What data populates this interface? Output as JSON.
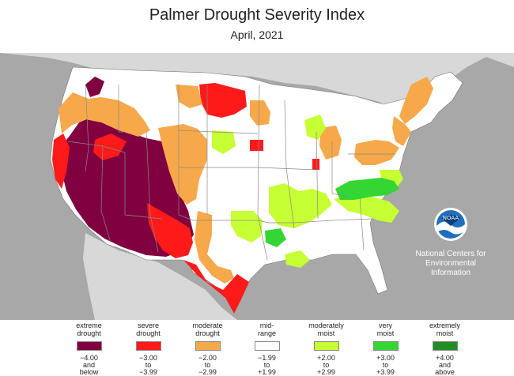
{
  "title": "Palmer Drought Severity Index",
  "subtitle": "April, 2021",
  "org": {
    "line1": "National Centers for",
    "line2": "Environmental",
    "line3": "Information",
    "logo_text": "NOAA"
  },
  "colors": {
    "extreme_drought": "#800040",
    "severe_drought": "#ff1a1a",
    "moderate_drought": "#f7a84a",
    "mid_range": "#ffffff",
    "moderately_moist": "#c6ff33",
    "very_moist": "#33d633",
    "extremely_moist": "#238c23",
    "ocean": "#a8a8a8",
    "neighbors": "#d8d8d8"
  },
  "legend": [
    {
      "label1": "extreme",
      "label2": "drought",
      "range1": "−4.00",
      "range2": "and",
      "range3": "below",
      "color": "#800040"
    },
    {
      "label1": "severe",
      "label2": "drought",
      "range1": "−3.00",
      "range2": "to",
      "range3": "−3.99",
      "color": "#ff1a1a"
    },
    {
      "label1": "moderate",
      "label2": "drought",
      "range1": "−2.00",
      "range2": "to",
      "range3": "−2.99",
      "color": "#f7a84a"
    },
    {
      "label1": "mid-",
      "label2": "range",
      "range1": "−1.99",
      "range2": "to",
      "range3": "+1.99",
      "color": "#ffffff"
    },
    {
      "label1": "moderately",
      "label2": "moist",
      "range1": "+2.00",
      "range2": "to",
      "range3": "+2.99",
      "color": "#c6ff33"
    },
    {
      "label1": "very",
      "label2": "moist",
      "range1": "+3.00",
      "range2": "to",
      "range3": "+3.99",
      "color": "#33d633"
    },
    {
      "label1": "extremely",
      "label2": "moist",
      "range1": "+4.00",
      "range2": "and",
      "range3": "above",
      "color": "#238c23"
    }
  ]
}
